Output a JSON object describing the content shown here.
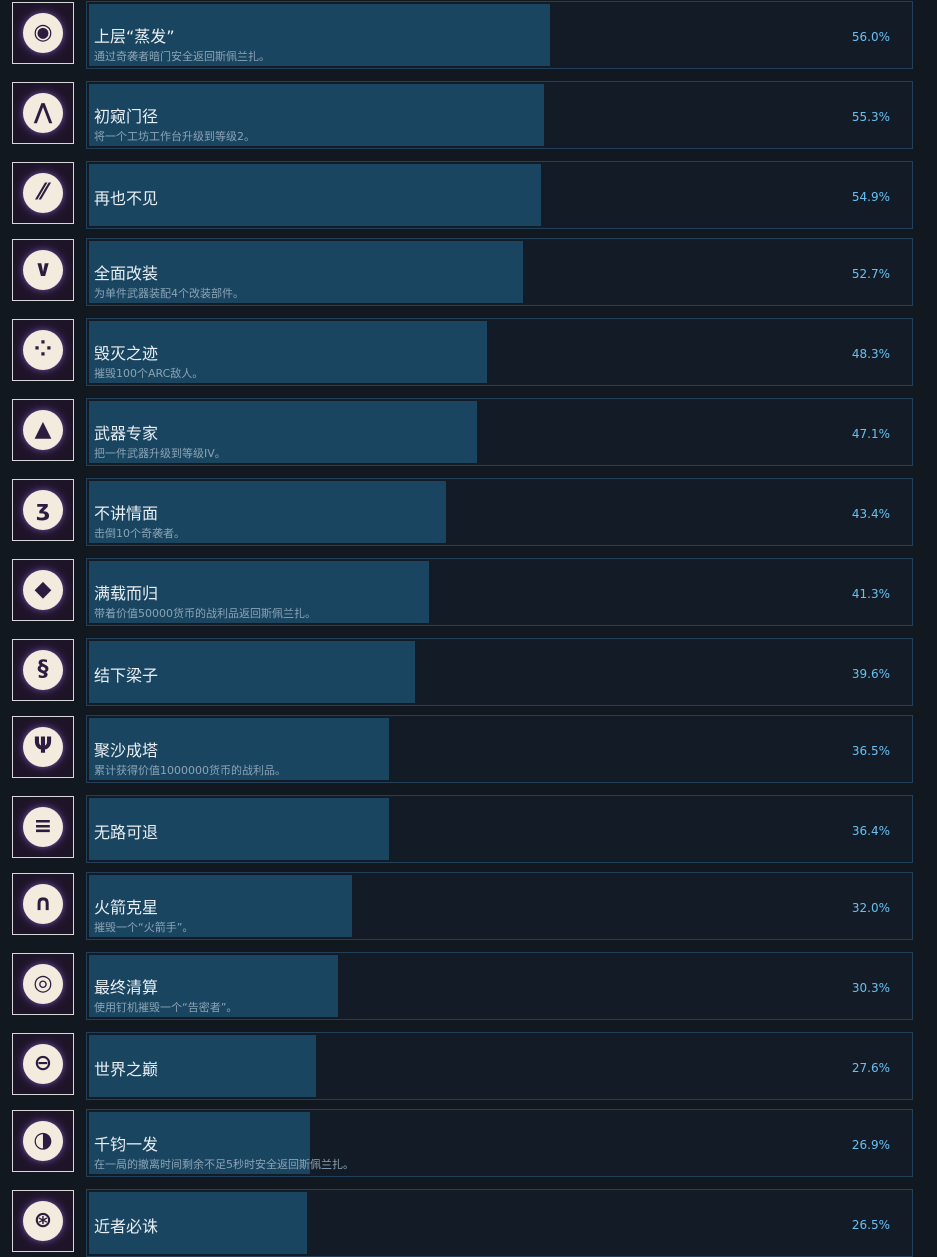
{
  "achievements": [
    {
      "title": "上层“蒸发”",
      "description": "通过奇袭者暗门安全返回斯佩兰扎。",
      "percent": "56.0%",
      "value": 56.0,
      "icon": "disc-segments-icon"
    },
    {
      "title": "初窥门径",
      "description": "将一个工坊工作台升级到等级2。",
      "percent": "55.3%",
      "value": 55.3,
      "icon": "chevrons-up-icon"
    },
    {
      "title": "再也不见",
      "description": "",
      "percent": "54.9%",
      "value": 54.9,
      "icon": "diagonal-stripes-icon"
    },
    {
      "title": "全面改装",
      "description": "为单件武器装配4个改装部件。",
      "percent": "52.7%",
      "value": 52.7,
      "icon": "chevron-down-icon"
    },
    {
      "title": "毁灭之迹",
      "description": "摧毁100个ARC敌人。",
      "percent": "48.3%",
      "value": 48.3,
      "icon": "dot-grid-icon"
    },
    {
      "title": "武器专家",
      "description": "把一件武器升级到等级IV。",
      "percent": "47.1%",
      "value": 47.1,
      "icon": "triangle-icon"
    },
    {
      "title": "不讲情面",
      "description": "击倒10个奇袭者。",
      "percent": "43.4%",
      "value": 43.4,
      "icon": "coil-icon"
    },
    {
      "title": "满载而归",
      "description": "带着价值50000货币的战利品返回斯佩兰扎。",
      "percent": "41.3%",
      "value": 41.3,
      "icon": "diamond-fan-icon"
    },
    {
      "title": "结下梁子",
      "description": "",
      "percent": "39.6%",
      "value": 39.6,
      "icon": "s-curve-icon"
    },
    {
      "title": "聚沙成塔",
      "description": "累计获得价值1000000货币的战利品。",
      "percent": "36.5%",
      "value": 36.5,
      "icon": "fountain-icon"
    },
    {
      "title": "无路可退",
      "description": "",
      "percent": "36.4%",
      "value": 36.4,
      "icon": "horizontal-stripes-icon"
    },
    {
      "title": "火箭克星",
      "description": "摧毁一个“火箭手”。",
      "percent": "32.0%",
      "value": 32.0,
      "icon": "arch-icon"
    },
    {
      "title": "最终清算",
      "description": "使用钉机摧毁一个“告密者”。",
      "percent": "30.3%",
      "value": 30.3,
      "icon": "spiral-icon"
    },
    {
      "title": "世界之巅",
      "description": "",
      "percent": "27.6%",
      "value": 27.6,
      "icon": "horizon-icon"
    },
    {
      "title": "千钧一发",
      "description": "在一局的撤离时间剩余不足5秒时安全返回斯佩兰扎。",
      "percent": "26.9%",
      "value": 26.9,
      "icon": "eye-icon"
    },
    {
      "title": "近者必诛",
      "description": "",
      "percent": "26.5%",
      "value": 26.5,
      "icon": "target-icon"
    }
  ],
  "colors": {
    "background": "#111820",
    "bar_fill": "#1a4560",
    "percent_text": "#66c0f4"
  }
}
